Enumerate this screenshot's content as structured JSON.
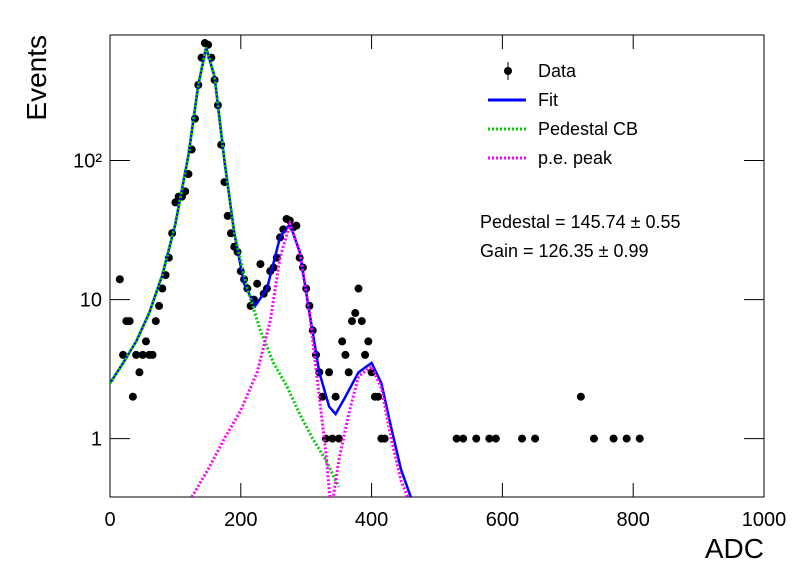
{
  "chart_data": {
    "type": "scatter",
    "xlabel": "ADC",
    "ylabel": "Events",
    "ylog": true,
    "xlim": [
      0,
      1000
    ],
    "xticks": [
      0,
      200,
      400,
      600,
      800,
      1000
    ],
    "ylim": [
      0.38,
      800
    ],
    "yticks": [
      1,
      10,
      {
        "value": 100,
        "label": "10²"
      }
    ],
    "legend": "upper right",
    "annotations": [
      "Pedestal = 145.74 ± 0.55",
      "Gain = 126.35 ± 0.99"
    ],
    "series": [
      {
        "name": "Data",
        "type": "scatter",
        "color": "#000000",
        "x": [
          15,
          20,
          25,
          30,
          35,
          40,
          45,
          50,
          55,
          60,
          65,
          70,
          75,
          80,
          85,
          90,
          95,
          100,
          105,
          110,
          115,
          120,
          125,
          130,
          135,
          140,
          145,
          150,
          155,
          160,
          165,
          170,
          175,
          180,
          185,
          190,
          195,
          200,
          205,
          210,
          215,
          220,
          225,
          230,
          235,
          240,
          245,
          250,
          255,
          260,
          265,
          270,
          275,
          280,
          285,
          290,
          295,
          300,
          305,
          310,
          315,
          320,
          325,
          330,
          335,
          340,
          345,
          350,
          355,
          360,
          365,
          370,
          375,
          380,
          385,
          390,
          395,
          400,
          405,
          410,
          415,
          420,
          530,
          540,
          560,
          580,
          590,
          630,
          650,
          720,
          740,
          770,
          790,
          810
        ],
        "values": [
          14,
          4,
          7,
          7,
          2,
          4,
          3,
          4,
          5,
          4,
          4,
          7,
          9,
          12,
          15,
          20,
          30,
          50,
          55,
          55,
          60,
          80,
          120,
          200,
          350,
          550,
          700,
          680,
          550,
          380,
          250,
          130,
          70,
          40,
          30,
          24,
          22,
          16,
          14,
          12,
          9,
          10,
          13,
          18,
          11,
          12,
          16,
          17,
          20,
          28,
          32,
          38,
          37,
          33,
          34,
          20,
          17,
          12,
          9,
          6,
          4,
          3,
          2,
          1,
          3,
          1,
          2,
          1,
          5,
          4,
          3,
          7,
          8,
          12,
          7,
          4,
          5,
          3,
          2,
          2,
          1,
          1,
          1,
          1,
          1,
          1,
          1,
          1,
          1,
          2,
          1,
          1,
          1,
          1
        ]
      },
      {
        "name": "Fit",
        "type": "line",
        "style": "solid",
        "color": "#0000ff",
        "x": [
          0,
          20,
          40,
          60,
          80,
          100,
          120,
          135,
          147,
          160,
          175,
          190,
          205,
          222,
          240,
          260,
          275,
          290,
          305,
          320,
          335,
          345,
          360,
          380,
          400,
          415,
          430,
          445,
          460
        ],
        "values": [
          2.5,
          3.5,
          5,
          8,
          15,
          35,
          110,
          350,
          650,
          400,
          100,
          30,
          13,
          9,
          12,
          28,
          35,
          22,
          8,
          3,
          1.7,
          1.5,
          2,
          3,
          3.5,
          2.5,
          1.2,
          0.6,
          0.38
        ]
      },
      {
        "name": "Pedestal CB",
        "type": "line",
        "style": "dotted",
        "color": "#00cc00",
        "x": [
          0,
          20,
          40,
          60,
          80,
          100,
          120,
          135,
          147,
          160,
          175,
          190,
          210,
          230,
          250,
          270,
          290,
          310,
          330,
          350
        ],
        "values": [
          2.5,
          3.5,
          5,
          8,
          15,
          35,
          110,
          350,
          650,
          400,
          100,
          30,
          12,
          6,
          3.5,
          2.4,
          1.5,
          1,
          0.7,
          0.45
        ]
      },
      {
        "name": "p.e. peak",
        "type": "line",
        "style": "dotted",
        "color": "#ff00ff",
        "x": [
          125,
          150,
          175,
          200,
          225,
          245,
          260,
          275,
          290,
          305,
          320,
          330,
          338,
          350,
          365,
          380,
          400,
          415,
          430,
          445,
          455
        ],
        "values": [
          0.38,
          0.6,
          1,
          1.6,
          3,
          7,
          20,
          35,
          22,
          8,
          2,
          0.8,
          0.3,
          0.7,
          1.5,
          2.8,
          3.3,
          2.3,
          1,
          0.5,
          0.38
        ]
      }
    ]
  }
}
